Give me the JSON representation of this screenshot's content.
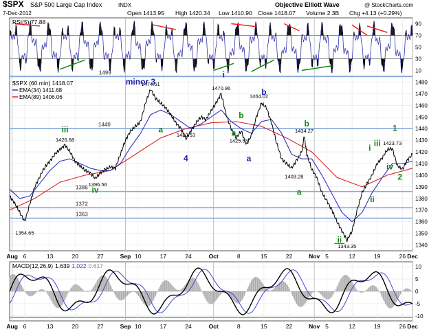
{
  "header": {
    "symbol": "$SPX",
    "name": "S&P 500 Large Cap Index",
    "exchange": "INDX",
    "source": "Objective Elliott Wave",
    "copyright": "@ StockCharts.com",
    "date": "7-Dec-2012",
    "open": "Open 1413.95",
    "high": "High 1420.34",
    "low": "Low 1410.90",
    "close": "Close 1418.07",
    "volume": "Volume 2.3B",
    "change": "Chg +4.13 (+0.29%)"
  },
  "colors": {
    "price": "#000000",
    "ema34": "#3333bb",
    "ema89": "#dd2222",
    "rsi": "#3333aa",
    "macd": "#000000",
    "signal": "#4444cc",
    "hist": "#aaaaaa",
    "hline": "#88aadd",
    "green": "#118811",
    "blue": "#2222aa",
    "trend_red": "#ee2222"
  },
  "chart_data": [
    {
      "type": "line",
      "panel": "rsi",
      "legend": "RSI(5) 77.88",
      "ylim": [
        0,
        100
      ],
      "yticks": [
        "90",
        "70",
        "50",
        "30",
        "10"
      ],
      "levels": [
        70,
        30
      ],
      "series": [
        {
          "name": "RSI(5)",
          "last": 77.88
        }
      ]
    },
    {
      "type": "line",
      "panel": "price",
      "legend": {
        "main": "$SPX (60 min) 1418.07",
        "ema34": "EMA(34) 1411.68",
        "ema89": "EMA(89) 1406.06"
      },
      "ylim": [
        1335,
        1485
      ],
      "yticks": [
        "1480",
        "1470",
        "1460",
        "1450",
        "1440",
        "1430",
        "1420",
        "1410",
        "1400",
        "1390",
        "1380",
        "1370",
        "1360",
        "1350",
        "1340"
      ],
      "xticks": [
        "Aug",
        "6",
        "13",
        "20",
        "27",
        "Sep",
        "10",
        "17",
        "24",
        "Oct",
        "8",
        "15",
        "22",
        "Nov",
        "5",
        "12",
        "19",
        "26",
        "Dec"
      ],
      "support_levels": [
        {
          "value": 1499,
          "label": "1499"
        },
        {
          "value": 1440,
          "label": "1440"
        },
        {
          "value": 1386,
          "label": "1386"
        },
        {
          "value": 1372,
          "label": "1372"
        },
        {
          "value": 1363,
          "label": "1363"
        }
      ],
      "price_labels": [
        {
          "x": 6,
          "y": 1354.65,
          "label": "1354.65"
        },
        {
          "x": 22,
          "y": 1426.68,
          "label": "1426.68"
        },
        {
          "x": 35,
          "y": 1396.56,
          "label": "1396.56"
        },
        {
          "x": 56,
          "y": 1474.51,
          "label": "1474.51"
        },
        {
          "x": 70,
          "y": 1430.53,
          "label": "1430.53"
        },
        {
          "x": 84,
          "y": 1470.96,
          "label": "1470.96"
        },
        {
          "x": 91,
          "y": 1425.53,
          "label": "1425.53"
        },
        {
          "x": 99,
          "y": 1464.02,
          "label": "1464.02"
        },
        {
          "x": 113,
          "y": 1403.28,
          "label": "1403.28"
        },
        {
          "x": 117,
          "y": 1434.27,
          "label": "1434.27"
        },
        {
          "x": 134,
          "y": 1343.35,
          "label": "1343.35"
        },
        {
          "x": 152,
          "y": 1423.73,
          "label": "1423.73"
        }
      ],
      "wave_labels": [
        {
          "x": 22,
          "y": 1437,
          "label": "iii",
          "color": "green"
        },
        {
          "x": 34,
          "y": 1385,
          "label": "iv",
          "color": "green"
        },
        {
          "x": 52,
          "y": 1478,
          "label": "minor 3",
          "color": "blue"
        },
        {
          "x": 60,
          "y": 1437,
          "label": "a",
          "color": "green"
        },
        {
          "x": 70,
          "y": 1412,
          "label": "4",
          "color": "blue"
        },
        {
          "x": 85,
          "y": 1485,
          "label": "i",
          "color": "blue"
        },
        {
          "x": 89,
          "y": 1434,
          "label": "a",
          "color": "green"
        },
        {
          "x": 92,
          "y": 1449,
          "label": "b",
          "color": "green"
        },
        {
          "x": 95,
          "y": 1412,
          "label": "a",
          "color": "blue"
        },
        {
          "x": 101,
          "y": 1469,
          "label": "b",
          "color": "blue"
        },
        {
          "x": 115,
          "y": 1383,
          "label": "a",
          "color": "green"
        },
        {
          "x": 118,
          "y": 1442,
          "label": "b",
          "color": "green"
        },
        {
          "x": 131,
          "y": 1342,
          "label": "ii",
          "color": "green"
        },
        {
          "x": 143,
          "y": 1421,
          "label": "i",
          "color": "green"
        },
        {
          "x": 144,
          "y": 1377,
          "label": "ii",
          "color": "green"
        },
        {
          "x": 146,
          "y": 1425,
          "label": "iii",
          "color": "green"
        },
        {
          "x": 151,
          "y": 1405,
          "label": "iv",
          "color": "green"
        },
        {
          "x": 153,
          "y": 1438,
          "label": "1",
          "color": "green"
        },
        {
          "x": 155,
          "y": 1396,
          "label": "2",
          "color": "green"
        }
      ],
      "series": [
        {
          "name": "$SPX",
          "x": [
            0,
            2,
            4,
            6,
            8,
            10,
            12,
            14,
            16,
            18,
            20,
            22,
            24,
            26,
            28,
            30,
            32,
            34,
            36,
            38,
            40,
            42,
            44,
            46,
            48,
            50,
            52,
            54,
            56,
            58,
            60,
            62,
            64,
            66,
            68,
            70,
            72,
            74,
            76,
            78,
            80,
            82,
            84,
            86,
            88,
            90,
            92,
            94,
            96,
            98,
            100,
            102,
            104,
            106,
            108,
            110,
            112,
            114,
            116,
            117,
            118,
            120,
            122,
            124,
            126,
            128,
            130,
            132,
            134,
            136,
            138,
            140,
            142,
            144,
            146,
            148,
            150,
            152,
            154,
            156,
            158,
            160
          ],
          "y": [
            1382,
            1376,
            1368,
            1360,
            1375,
            1390,
            1399,
            1407,
            1412,
            1418,
            1422,
            1426,
            1420,
            1412,
            1408,
            1404,
            1402,
            1397,
            1402,
            1405,
            1407,
            1406,
            1418,
            1430,
            1438,
            1442,
            1446,
            1462,
            1474,
            1466,
            1462,
            1458,
            1452,
            1445,
            1440,
            1431,
            1438,
            1445,
            1450,
            1448,
            1455,
            1462,
            1470,
            1452,
            1440,
            1432,
            1438,
            1426,
            1434,
            1450,
            1462,
            1458,
            1445,
            1428,
            1414,
            1410,
            1406,
            1413,
            1420,
            1434,
            1418,
            1405,
            1398,
            1385,
            1378,
            1370,
            1360,
            1352,
            1344,
            1352,
            1370,
            1385,
            1393,
            1400,
            1410,
            1415,
            1422,
            1423,
            1408,
            1405,
            1413,
            1418
          ]
        },
        {
          "name": "EMA(34)",
          "x": [
            0,
            4,
            8,
            12,
            16,
            20,
            24,
            28,
            32,
            36,
            40,
            44,
            48,
            52,
            56,
            60,
            64,
            68,
            72,
            76,
            80,
            84,
            88,
            92,
            96,
            100,
            104,
            108,
            112,
            116,
            120,
            124,
            128,
            132,
            136,
            140,
            144,
            148,
            152,
            156,
            160
          ],
          "y": [
            1388,
            1380,
            1382,
            1393,
            1404,
            1412,
            1414,
            1410,
            1406,
            1404,
            1404,
            1410,
            1424,
            1436,
            1452,
            1456,
            1452,
            1446,
            1440,
            1444,
            1450,
            1456,
            1446,
            1440,
            1436,
            1446,
            1448,
            1436,
            1418,
            1414,
            1414,
            1400,
            1384,
            1368,
            1360,
            1368,
            1385,
            1398,
            1410,
            1410,
            1412
          ]
        },
        {
          "name": "EMA(89)",
          "x": [
            0,
            10,
            20,
            30,
            40,
            50,
            60,
            70,
            80,
            90,
            100,
            110,
            120,
            130,
            140,
            150,
            160
          ],
          "y": [
            1370,
            1380,
            1394,
            1400,
            1404,
            1418,
            1432,
            1440,
            1445,
            1446,
            1442,
            1432,
            1420,
            1398,
            1390,
            1400,
            1406
          ]
        }
      ]
    },
    {
      "type": "line",
      "panel": "macd",
      "legend": {
        "label": "MACD(12,26,9)",
        "macd": "1.639",
        "signal": "1.022",
        "hist": "0.617"
      },
      "ylim": [
        -12,
        12
      ],
      "yticks": [
        "10",
        "5",
        "0",
        "-5",
        "-10"
      ],
      "xticks": [
        "Aug",
        "6",
        "13",
        "20",
        "27",
        "Sep",
        "10",
        "17",
        "24",
        "Oct",
        "8",
        "15",
        "22",
        "Nov",
        "5",
        "12",
        "19",
        "26",
        "Dec"
      ]
    }
  ]
}
